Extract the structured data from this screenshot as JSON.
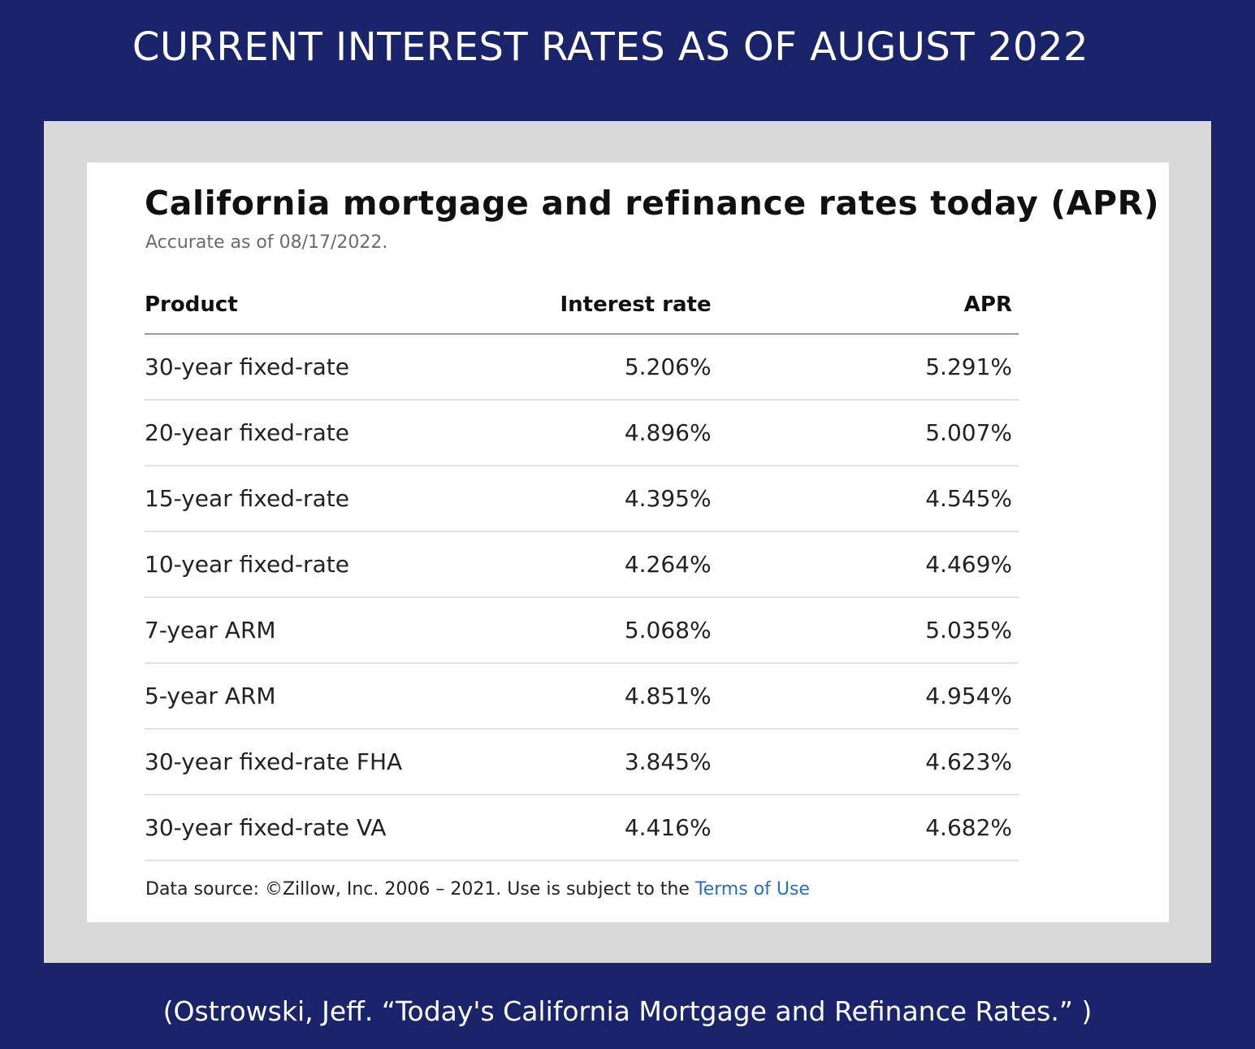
{
  "heading": "CURRENT INTEREST RATES AS OF AUGUST 2022",
  "card": {
    "title": "California mortgage and refinance rates today (APR)",
    "subtitle": "Accurate as of 08/17/2022.",
    "columns": {
      "product": "Product",
      "rate": "Interest rate",
      "apr": "APR"
    },
    "rows": [
      {
        "product": "30-year fixed-rate",
        "rate": "5.206%",
        "apr": "5.291%"
      },
      {
        "product": "20-year fixed-rate",
        "rate": "4.896%",
        "apr": "5.007%"
      },
      {
        "product": "15-year fixed-rate",
        "rate": "4.395%",
        "apr": "4.545%"
      },
      {
        "product": "10-year fixed-rate",
        "rate": "4.264%",
        "apr": "4.469%"
      },
      {
        "product": "7-year ARM",
        "rate": "5.068%",
        "apr": "5.035%"
      },
      {
        "product": "5-year ARM",
        "rate": "4.851%",
        "apr": "4.954%"
      },
      {
        "product": "30-year fixed-rate FHA",
        "rate": "3.845%",
        "apr": "4.623%"
      },
      {
        "product": "30-year fixed-rate VA",
        "rate": "4.416%",
        "apr": "4.682%"
      }
    ],
    "footer": {
      "text": "Data source: ©Zillow, Inc. 2006 – 2021. Use is subject to the ",
      "link": "Terms of Use"
    }
  },
  "citation": "(Ostrowski, Jeff. “Today's California Mortgage and Refinance Rates.” )",
  "colors": {
    "background": "#1a246b",
    "frame": "#d9d9d9",
    "card": "#ffffff",
    "link": "#2a6ebb"
  }
}
